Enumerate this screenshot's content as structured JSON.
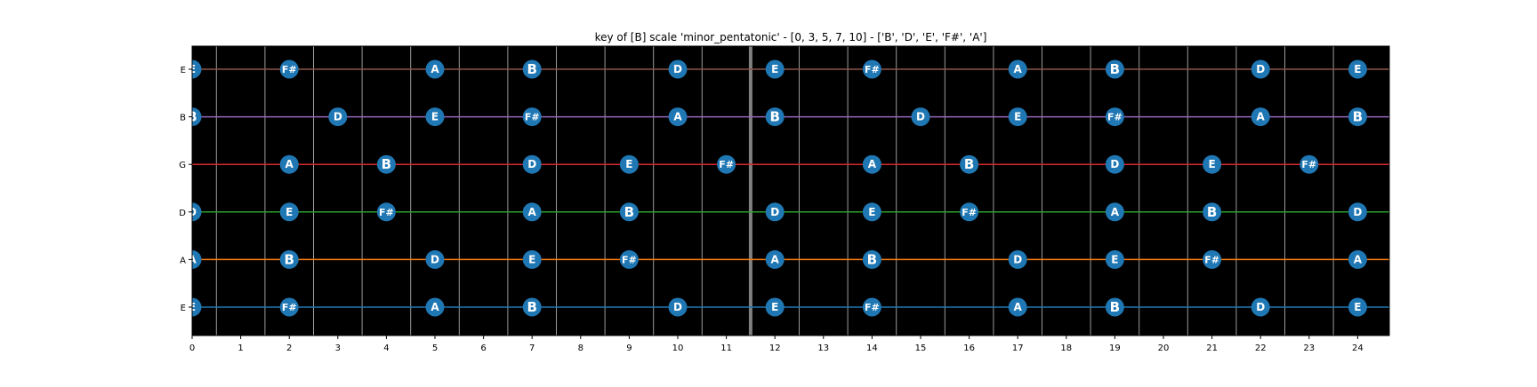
{
  "chart_data": {
    "type": "scatter",
    "title": "key of [B] scale 'minor_pentatonic' - [0, 3, 5, 7, 10] - ['B', 'D', 'E', 'F#', 'A']",
    "xlabel": "",
    "ylabel": "",
    "xlim": [
      0,
      24.5
    ],
    "xticks": [
      "0",
      "1",
      "2",
      "3",
      "4",
      "5",
      "6",
      "7",
      "8",
      "9",
      "10",
      "11",
      "12",
      "13",
      "14",
      "15",
      "16",
      "17",
      "18",
      "19",
      "20",
      "21",
      "22",
      "23",
      "24"
    ],
    "grid": false,
    "legend": "none",
    "colors": {
      "background": "#000000",
      "fret_line": "#9a9a9a",
      "nut_line": "#808080",
      "marker": "#1f77b4",
      "marker_label": "#ffffff"
    },
    "strings": [
      {
        "name": "E",
        "color": "#1f77b4",
        "notes": [
          {
            "fret": 0,
            "note": "E"
          },
          {
            "fret": 2,
            "note": "F#"
          },
          {
            "fret": 5,
            "note": "A"
          },
          {
            "fret": 7,
            "note": "B"
          },
          {
            "fret": 10,
            "note": "D"
          },
          {
            "fret": 12,
            "note": "E"
          },
          {
            "fret": 14,
            "note": "F#"
          },
          {
            "fret": 17,
            "note": "A"
          },
          {
            "fret": 19,
            "note": "B"
          },
          {
            "fret": 22,
            "note": "D"
          },
          {
            "fret": 24,
            "note": "E"
          }
        ]
      },
      {
        "name": "A",
        "color": "#ff7f0e",
        "notes": [
          {
            "fret": 0,
            "note": "A"
          },
          {
            "fret": 2,
            "note": "B"
          },
          {
            "fret": 5,
            "note": "D"
          },
          {
            "fret": 7,
            "note": "E"
          },
          {
            "fret": 9,
            "note": "F#"
          },
          {
            "fret": 12,
            "note": "A"
          },
          {
            "fret": 14,
            "note": "B"
          },
          {
            "fret": 17,
            "note": "D"
          },
          {
            "fret": 19,
            "note": "E"
          },
          {
            "fret": 21,
            "note": "F#"
          },
          {
            "fret": 24,
            "note": "A"
          }
        ]
      },
      {
        "name": "D",
        "color": "#2ca02c",
        "notes": [
          {
            "fret": 0,
            "note": "D"
          },
          {
            "fret": 2,
            "note": "E"
          },
          {
            "fret": 4,
            "note": "F#"
          },
          {
            "fret": 7,
            "note": "A"
          },
          {
            "fret": 9,
            "note": "B"
          },
          {
            "fret": 12,
            "note": "D"
          },
          {
            "fret": 14,
            "note": "E"
          },
          {
            "fret": 16,
            "note": "F#"
          },
          {
            "fret": 19,
            "note": "A"
          },
          {
            "fret": 21,
            "note": "B"
          },
          {
            "fret": 24,
            "note": "D"
          }
        ]
      },
      {
        "name": "G",
        "color": "#d62728",
        "notes": [
          {
            "fret": 2,
            "note": "A"
          },
          {
            "fret": 4,
            "note": "B"
          },
          {
            "fret": 7,
            "note": "D"
          },
          {
            "fret": 9,
            "note": "E"
          },
          {
            "fret": 11,
            "note": "F#"
          },
          {
            "fret": 14,
            "note": "A"
          },
          {
            "fret": 16,
            "note": "B"
          },
          {
            "fret": 19,
            "note": "D"
          },
          {
            "fret": 21,
            "note": "E"
          },
          {
            "fret": 23,
            "note": "F#"
          }
        ]
      },
      {
        "name": "B",
        "color": "#9467bd",
        "notes": [
          {
            "fret": 0,
            "note": "B"
          },
          {
            "fret": 3,
            "note": "D"
          },
          {
            "fret": 5,
            "note": "E"
          },
          {
            "fret": 7,
            "note": "F#"
          },
          {
            "fret": 10,
            "note": "A"
          },
          {
            "fret": 12,
            "note": "B"
          },
          {
            "fret": 15,
            "note": "D"
          },
          {
            "fret": 17,
            "note": "E"
          },
          {
            "fret": 19,
            "note": "F#"
          },
          {
            "fret": 22,
            "note": "A"
          },
          {
            "fret": 24,
            "note": "B"
          }
        ]
      },
      {
        "name": "E",
        "color": "#8c564b",
        "notes": [
          {
            "fret": 0,
            "note": "E"
          },
          {
            "fret": 2,
            "note": "F#"
          },
          {
            "fret": 5,
            "note": "A"
          },
          {
            "fret": 7,
            "note": "B"
          },
          {
            "fret": 10,
            "note": "D"
          },
          {
            "fret": 12,
            "note": "E"
          },
          {
            "fret": 14,
            "note": "F#"
          },
          {
            "fret": 17,
            "note": "A"
          },
          {
            "fret": 19,
            "note": "B"
          },
          {
            "fret": 22,
            "note": "D"
          },
          {
            "fret": 24,
            "note": "E"
          }
        ]
      }
    ]
  }
}
